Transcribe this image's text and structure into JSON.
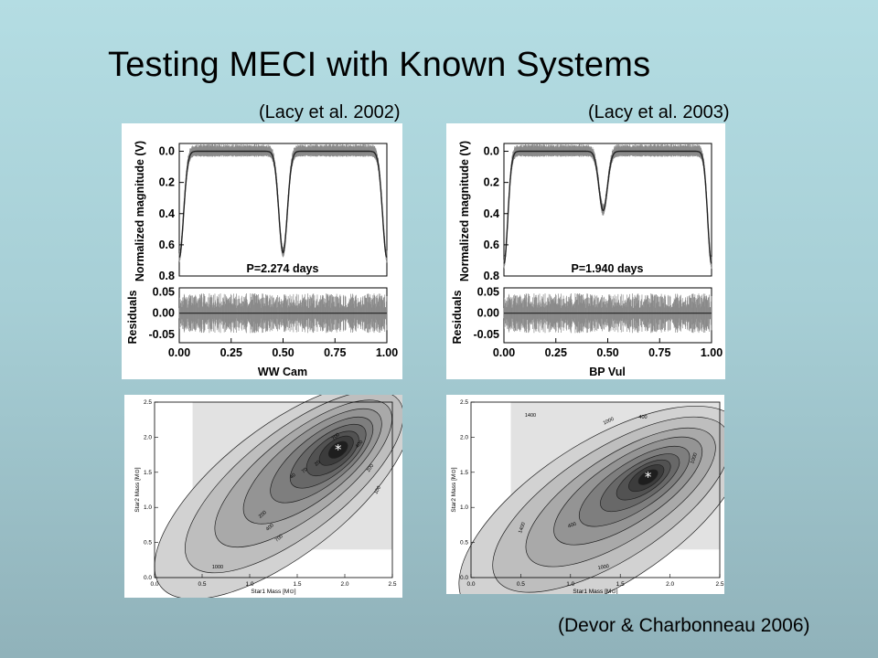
{
  "slide": {
    "title": "Testing MECI with Known Systems",
    "cite_left": "(Lacy et al. 2002)",
    "cite_right": "(Lacy et al. 2003)",
    "cite_bottom": "(Devor & Charbonneau 2006)"
  },
  "chart_data": [
    {
      "type": "line",
      "title": "",
      "period_label": "P=2.274 days",
      "xlabel": "WW Cam",
      "ylabel": "Normalized magnitude (V)",
      "ylabel2": "Residuals",
      "xlim": [
        0,
        1
      ],
      "ylim": [
        0.8,
        -0.05
      ],
      "reslim": [
        -0.07,
        0.06
      ],
      "x_ticks": [
        "0.00",
        "0.25",
        "0.50",
        "0.75",
        "1.00"
      ],
      "y_ticks": [
        "0.0",
        "0.2",
        "0.4",
        "0.6",
        "0.8"
      ],
      "res_ticks": [
        "0.05",
        "0.00",
        "-0.05"
      ],
      "eclipses": [
        {
          "phase": 0.0,
          "depth": 0.68,
          "width": 0.05
        },
        {
          "phase": 0.5,
          "depth": 0.65,
          "width": 0.05
        },
        {
          "phase": 1.0,
          "depth": 0.68,
          "width": 0.05
        }
      ]
    },
    {
      "type": "line",
      "title": "",
      "period_label": "P=1.940 days",
      "xlabel": "BP Vul",
      "ylabel": "Normalized magnitude (V)",
      "ylabel2": "Residuals",
      "xlim": [
        0,
        1
      ],
      "ylim": [
        0.8,
        -0.05
      ],
      "reslim": [
        -0.07,
        0.06
      ],
      "x_ticks": [
        "0.00",
        "0.25",
        "0.50",
        "0.75",
        "1.00"
      ],
      "y_ticks": [
        "0.0",
        "0.2",
        "0.4",
        "0.6",
        "0.8"
      ],
      "res_ticks": [
        "0.05",
        "0.00",
        "-0.05"
      ],
      "eclipses": [
        {
          "phase": 0.0,
          "depth": 0.72,
          "width": 0.045
        },
        {
          "phase": 0.478,
          "depth": 0.38,
          "width": 0.05
        },
        {
          "phase": 1.0,
          "depth": 0.72,
          "width": 0.045
        }
      ]
    },
    {
      "type": "heatmap",
      "xlabel": "Star1 Mass  [M⊙]",
      "ylabel": "Star2 Mass  [M⊙]",
      "xlim": [
        0,
        2.5
      ],
      "ylim": [
        0,
        2.5
      ],
      "x_ticks": [
        "0.0",
        "0.5",
        "1.0",
        "1.5",
        "2.0",
        "2.5"
      ],
      "y_ticks": [
        "0.0",
        "0.5",
        "1.0",
        "1.5",
        "2.0",
        "2.5"
      ],
      "grid_region": {
        "x": [
          0.4,
          2.5
        ],
        "y": [
          0.4,
          2.5
        ]
      },
      "minimum": {
        "x": 1.93,
        "y": 1.82
      },
      "levels": [
        10,
        20,
        40,
        70,
        100,
        200,
        400,
        700,
        1000
      ],
      "labels_shown": [
        "700",
        "400",
        "200",
        "100",
        "70",
        "40",
        "20",
        "1000",
        "700",
        "400",
        "200"
      ]
    },
    {
      "type": "heatmap",
      "xlabel": "Star1 Mass  [M⊙]",
      "ylabel": "Star2 Mass  [M⊙]",
      "xlim": [
        0,
        2.5
      ],
      "ylim": [
        0,
        2.5
      ],
      "x_ticks": [
        "0.0",
        "0.5",
        "1.0",
        "1.5",
        "2.0",
        "2.5"
      ],
      "y_ticks": [
        "0.0",
        "0.5",
        "1.0",
        "1.5",
        "2.0",
        "2.5"
      ],
      "grid_region": {
        "x": [
          0.4,
          2.5
        ],
        "y": [
          0.4,
          2.5
        ]
      },
      "minimum": {
        "x": 1.78,
        "y": 1.43
      },
      "levels": [
        10,
        20,
        40,
        70,
        100,
        200,
        400,
        1000,
        1400
      ],
      "labels_shown": [
        "1400",
        "1000",
        "400",
        "1000",
        "400",
        "1400",
        "1000"
      ]
    }
  ]
}
